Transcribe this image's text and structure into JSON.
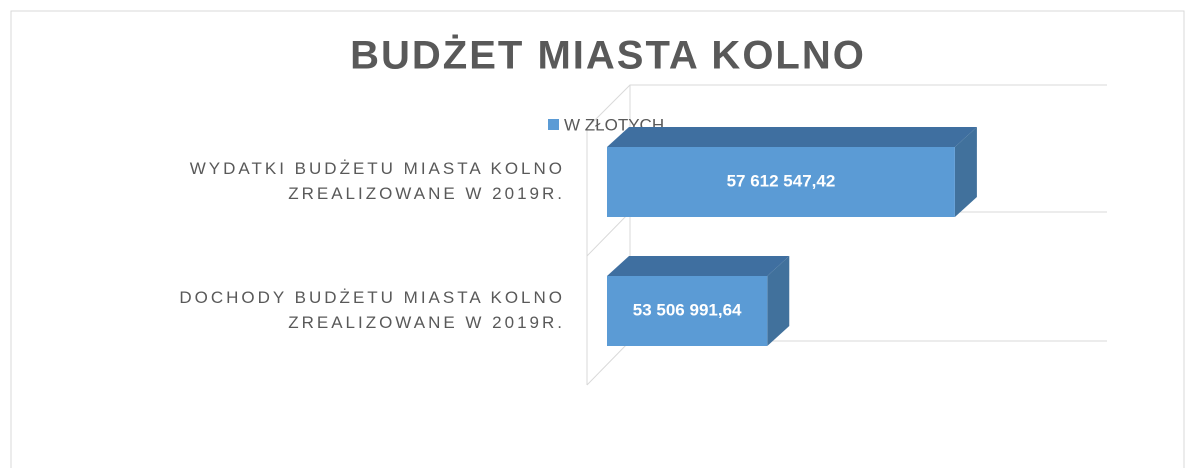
{
  "chart_data": {
    "type": "bar3d_horizontal",
    "title": "BUDŻET MIASTA KOLNO",
    "categories": [
      [
        "WYDATKI BUDŻETU MIASTA KOLNO",
        "ZREALIZOWANE W 2019R."
      ],
      [
        "DOCHODY BUDŻETU MIASTA KOLNO",
        "ZREALIZOWANE W 2019R."
      ]
    ],
    "series": [
      {
        "name": "W ZŁOTYCH",
        "color": "#5b9bd5",
        "side_color": "#41719c",
        "top_color": "#3f6fa0",
        "values": [
          57612547.42,
          53506991.64
        ],
        "value_labels": [
          "57 612 547,42",
          "53 506 991,64"
        ]
      }
    ],
    "xlim": [
      50000000,
      60000000
    ],
    "legend": "top"
  }
}
